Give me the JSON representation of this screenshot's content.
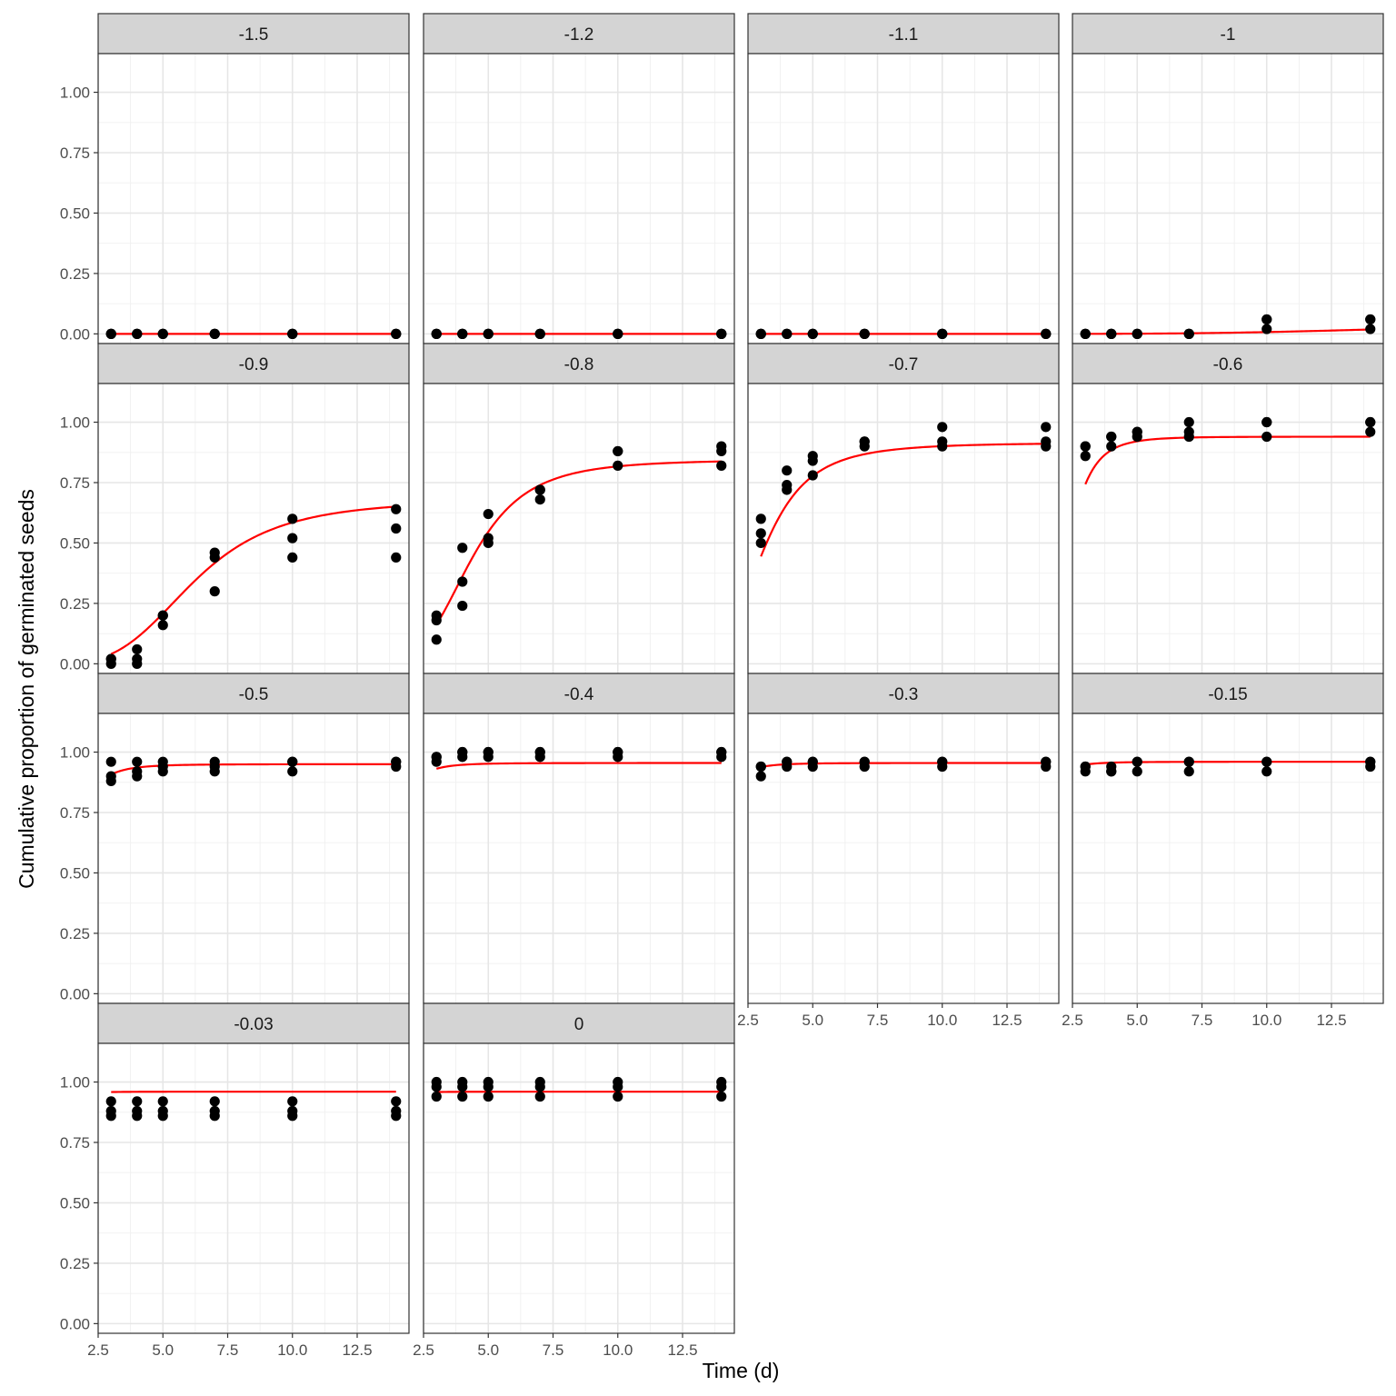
{
  "chart_data": {
    "type": "scatter",
    "xlabel": "Time (d)",
    "ylabel": "Cumulative proportion of germinated seeds",
    "xlim": [
      2.5,
      14.5
    ],
    "ylim": [
      -0.04,
      1.16
    ],
    "x_ticks": [
      "2.5",
      "5.0",
      "7.5",
      "10.0",
      "12.5"
    ],
    "x_tick_values": [
      2.5,
      5,
      7.5,
      10,
      12.5
    ],
    "y_ticks": [
      "0.00",
      "0.25",
      "0.50",
      "0.75",
      "1.00"
    ],
    "y_tick_values": [
      0,
      0.25,
      0.5,
      0.75,
      1
    ],
    "grid": true,
    "point_color": "#000000",
    "line_color": "#ff0000",
    "panels": [
      {
        "label": "-1.5",
        "curve": {
          "a": 0.0,
          "b": 1,
          "k": 3
        },
        "points": {
          "3": [
            0,
            0,
            0
          ],
          "4": [
            0,
            0,
            0
          ],
          "5": [
            0,
            0,
            0
          ],
          "7": [
            0,
            0,
            0
          ],
          "10": [
            0,
            0,
            0
          ],
          "14": [
            0,
            0,
            0
          ]
        }
      },
      {
        "label": "-1.2",
        "curve": {
          "a": 0.0,
          "b": 1,
          "k": 3
        },
        "points": {
          "3": [
            0,
            0,
            0
          ],
          "4": [
            0,
            0,
            0
          ],
          "5": [
            0,
            0,
            0
          ],
          "7": [
            0,
            0,
            0
          ],
          "10": [
            0,
            0,
            0
          ],
          "14": [
            0,
            0,
            0
          ]
        }
      },
      {
        "label": "-1.1",
        "curve": {
          "a": 0.0,
          "b": 1,
          "k": 3
        },
        "points": {
          "3": [
            0,
            0,
            0
          ],
          "4": [
            0,
            0,
            0
          ],
          "5": [
            0,
            0,
            0
          ],
          "7": [
            0,
            0,
            0
          ],
          "10": [
            0,
            0,
            0
          ],
          "14": [
            0,
            0,
            0
          ]
        }
      },
      {
        "label": "-1",
        "curve": {
          "a": 0.06,
          "b": 18,
          "k": 3.3
        },
        "points": {
          "3": [
            0,
            0,
            0
          ],
          "4": [
            0,
            0,
            0
          ],
          "5": [
            0,
            0,
            0
          ],
          "7": [
            0,
            0,
            0
          ],
          "10": [
            0.02,
            0.06,
            0.06
          ],
          "14": [
            0.02,
            0.06,
            0.06
          ]
        }
      },
      {
        "label": "-0.9",
        "curve": {
          "a": 0.68,
          "b": 6.2,
          "k": 3.8
        },
        "points": {
          "3": [
            0,
            0.02,
            0.02
          ],
          "4": [
            0,
            0.02,
            0.06
          ],
          "5": [
            0.16,
            0.2,
            0.2
          ],
          "7": [
            0.3,
            0.44,
            0.46
          ],
          "10": [
            0.44,
            0.52,
            0.6
          ],
          "14": [
            0.44,
            0.56,
            0.64
          ]
        }
      },
      {
        "label": "-0.8",
        "curve": {
          "a": 0.845,
          "b": 4.3,
          "k": 4.0
        },
        "points": {
          "3": [
            0.1,
            0.18,
            0.2
          ],
          "4": [
            0.24,
            0.34,
            0.48
          ],
          "5": [
            0.5,
            0.52,
            0.62
          ],
          "7": [
            0.68,
            0.72,
            0.72
          ],
          "10": [
            0.82,
            0.88,
            0.88
          ],
          "14": [
            0.82,
            0.88,
            0.9
          ]
        }
      },
      {
        "label": "-0.7",
        "curve": {
          "a": 0.915,
          "b": 3.05,
          "k": 3.5
        },
        "points": {
          "3": [
            0.5,
            0.54,
            0.6
          ],
          "4": [
            0.72,
            0.74,
            0.8
          ],
          "5": [
            0.78,
            0.84,
            0.86
          ],
          "7": [
            0.9,
            0.92,
            0.92
          ],
          "10": [
            0.9,
            0.92,
            0.98
          ],
          "14": [
            0.9,
            0.92,
            0.98
          ]
        }
      },
      {
        "label": "-0.6",
        "curve": {
          "a": 0.94,
          "b": 2.3,
          "k": 5.0
        },
        "points": {
          "3": [
            0.86,
            0.9,
            0.9
          ],
          "4": [
            0.9,
            0.94,
            0.94
          ],
          "5": [
            0.94,
            0.96,
            0.96
          ],
          "7": [
            0.94,
            0.96,
            1.0
          ],
          "10": [
            0.94,
            1.0,
            1.0
          ],
          "14": [
            0.96,
            1.0,
            1.0
          ]
        }
      },
      {
        "label": "-0.5",
        "curve": {
          "a": 0.95,
          "b": 1.4,
          "k": 4.0
        },
        "points": {
          "3": [
            0.88,
            0.9,
            0.96
          ],
          "4": [
            0.9,
            0.92,
            0.96
          ],
          "5": [
            0.92,
            0.94,
            0.96
          ],
          "7": [
            0.92,
            0.94,
            0.96
          ],
          "10": [
            0.92,
            0.96,
            0.96
          ],
          "14": [
            0.94,
            0.96,
            0.96
          ]
        }
      },
      {
        "label": "-0.4",
        "curve": {
          "a": 0.955,
          "b": 1.2,
          "k": 4.0
        },
        "points": {
          "3": [
            0.96,
            0.98,
            0.98
          ],
          "4": [
            0.98,
            1.0,
            1.0
          ],
          "5": [
            0.98,
            1.0,
            1.0
          ],
          "7": [
            0.98,
            1.0,
            1.0
          ],
          "10": [
            0.98,
            1.0,
            1.0
          ],
          "14": [
            0.98,
            1.0,
            1.0
          ]
        }
      },
      {
        "label": "-0.3",
        "curve": {
          "a": 0.955,
          "b": 1.1,
          "k": 4.0
        },
        "points": {
          "3": [
            0.9,
            0.94,
            0.94
          ],
          "4": [
            0.94,
            0.96,
            0.96
          ],
          "5": [
            0.94,
            0.96,
            0.96
          ],
          "7": [
            0.94,
            0.96,
            0.96
          ],
          "10": [
            0.94,
            0.96,
            0.96
          ],
          "14": [
            0.94,
            0.96,
            0.96
          ]
        }
      },
      {
        "label": "-0.15",
        "curve": {
          "a": 0.96,
          "b": 1.0,
          "k": 4.0
        },
        "points": {
          "3": [
            0.92,
            0.94,
            0.94
          ],
          "4": [
            0.92,
            0.92,
            0.94
          ],
          "5": [
            0.92,
            0.96,
            0.96
          ],
          "7": [
            0.92,
            0.96,
            0.96
          ],
          "10": [
            0.92,
            0.96,
            0.96
          ],
          "14": [
            0.94,
            0.96,
            0.96
          ]
        }
      },
      {
        "label": "-0.03",
        "curve": {
          "a": 0.96,
          "b": 0.6,
          "k": 4.0
        },
        "points": {
          "3": [
            0.86,
            0.88,
            0.92
          ],
          "4": [
            0.86,
            0.88,
            0.92
          ],
          "5": [
            0.86,
            0.88,
            0.92
          ],
          "7": [
            0.86,
            0.88,
            0.92
          ],
          "10": [
            0.86,
            0.88,
            0.92
          ],
          "14": [
            0.86,
            0.88,
            0.92
          ]
        }
      },
      {
        "label": "0",
        "curve": {
          "a": 0.96,
          "b": 0.6,
          "k": 4.0
        },
        "points": {
          "3": [
            0.94,
            0.98,
            1.0
          ],
          "4": [
            0.94,
            0.98,
            1.0
          ],
          "5": [
            0.94,
            0.98,
            1.0
          ],
          "7": [
            0.94,
            0.98,
            1.0
          ],
          "10": [
            0.94,
            0.98,
            1.0
          ],
          "14": [
            0.94,
            0.98,
            1.0
          ]
        }
      }
    ]
  }
}
